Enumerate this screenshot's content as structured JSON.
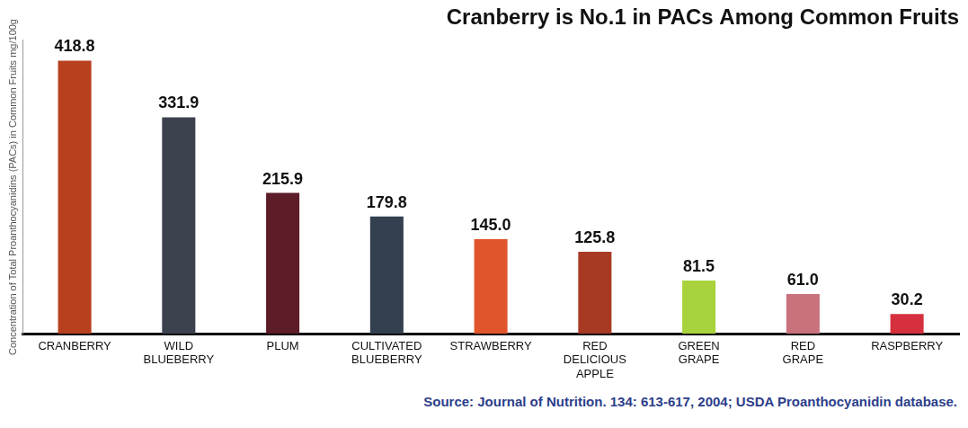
{
  "chart_data": {
    "type": "bar",
    "title": "Cranberry is No.1 in PACs Among Common Fruits",
    "ylabel": "Concentration of Total Proanthocyanidins (PACs) in Common Fruits mg/100g",
    "annotation": "Source: Journal of Nutrition. 134: 613-617, 2004; USDA Proanthocyanidin database.",
    "categories": [
      "CRANBERRY",
      "WILD BLUEBERRY",
      "PLUM",
      "CULTIVATED BLUEBERRY",
      "STRAWBERRY",
      "RED DELICIOUS APPLE",
      "GREEN GRAPE",
      "RED GRAPE",
      "RASPBERRY"
    ],
    "values": [
      418.8,
      331.9,
      215.9,
      179.8,
      145.0,
      125.8,
      81.5,
      61.0,
      30.2
    ],
    "value_labels": [
      "418.8",
      "331.9",
      "215.9",
      "179.8",
      "145.0",
      "125.8",
      "81.5",
      "61.0",
      "30.2"
    ],
    "colors": [
      "#b8401e",
      "#3b414d",
      "#5c1c28",
      "#34404f",
      "#e0552b",
      "#a83a24",
      "#a8d23c",
      "#c9727e",
      "#d6303e"
    ],
    "ylim": [
      0,
      450
    ],
    "grid": false,
    "data_labels": true,
    "tick_labels": "x"
  }
}
